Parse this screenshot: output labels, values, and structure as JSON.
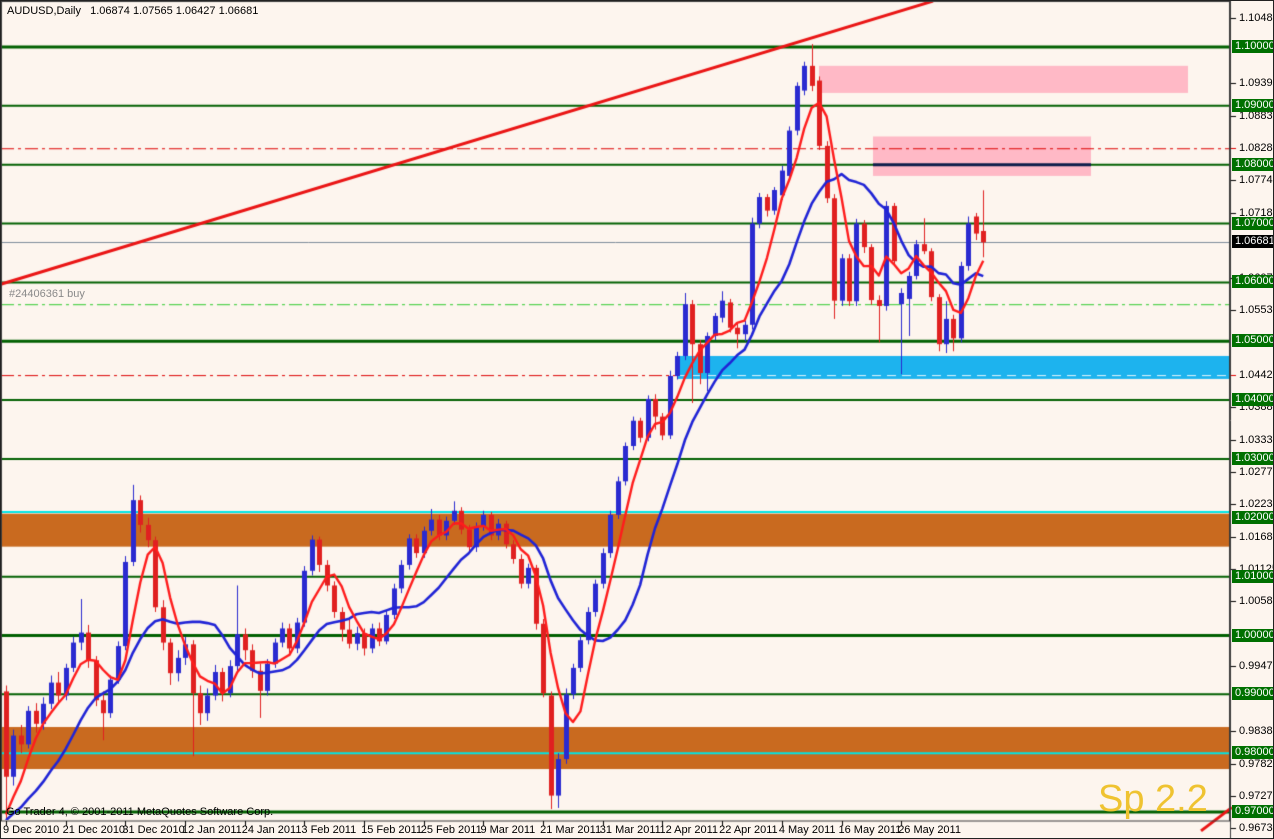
{
  "window": {
    "title_line": "AUDUSD,Daily   1.06874 1.07565 1.06427 1.06681",
    "copyright": "Go Trader 4, © 2001-2011 MetaQuotes Software Corp.",
    "watermark": "Sp 2.2",
    "order_label": "#24406361 buy"
  },
  "colors": {
    "background": "#fdf5ee",
    "candle_up": "#2a2ad0",
    "candle_down": "#e02020",
    "ma_fast": "#ff1c1c",
    "ma_slow": "#2024d6",
    "trendline": "#ea1515",
    "green_level": "#006000",
    "cyan_level": "#00e6e6",
    "orange_band": "#c96a1f",
    "pink_zone": "#ffb9c6",
    "blue_zone": "#1db3ee",
    "navy_segment": "#0c1e4a",
    "red_dash": "#dd0000",
    "order_line": "#2ecc2e",
    "price_line": "#7e8c9a",
    "axis_text": "#000000",
    "label_green_bg": "#007000",
    "label_black_bg": "#000000",
    "watermark_color": "#efc331"
  },
  "chart_data": {
    "type": "candlestick",
    "symbol": "AUDUSD",
    "timeframe": "Daily",
    "last_ohlc": {
      "open": 1.06874,
      "high": 1.07565,
      "low": 1.06427,
      "close": 1.06681
    },
    "axis": {
      "p_top": 1.10765,
      "p_bottom": 0.96865,
      "y1": 1,
      "y2": 819,
      "x_plot_right": 1229,
      "x0": 5,
      "dx": 7.46,
      "label_every": 8
    },
    "x_labels": [
      "9 Dec 2010",
      "21 Dec 2010",
      "31 Dec 2010",
      "12 Jan 2011",
      "24 Jan 2011",
      "3 Feb 2011",
      "15 Feb 2011",
      "25 Feb 2011",
      "9 Mar 2011",
      "21 Mar 2011",
      "31 Mar 2011",
      "12 Apr 2011",
      "22 Apr 2011",
      "4 May 2011",
      "16 May 2011",
      "26 May 2011"
    ],
    "y_ticks": [
      "1.10485",
      "1.09390",
      "1.08835",
      "1.08280",
      "1.07740",
      "1.07185",
      "1.06075",
      "1.05535",
      "1.04425",
      "1.03885",
      "1.03330",
      "1.02775",
      "1.02235",
      "1.01680",
      "1.01125",
      "1.00585",
      "0.99475",
      "0.98380",
      "0.97825",
      "0.97270",
      "0.96730"
    ],
    "y_ticks_red": [
      "1.08280",
      "1.04425"
    ],
    "y_green_labels": [
      "1.10000",
      "1.09000",
      "1.08000",
      "1.07000",
      "1.06000",
      "1.05000",
      "1.04000",
      "1.03000",
      "1.02000",
      "1.01000",
      "1.00000",
      "0.99000",
      "0.98000",
      "0.97000"
    ],
    "current_price_label": "1.06681",
    "current_price": 1.06681,
    "green_levels": [
      [
        1.1,
        3
      ],
      [
        1.09,
        2
      ],
      [
        1.08,
        2
      ],
      [
        1.07,
        2
      ],
      [
        1.06,
        2
      ],
      [
        1.05,
        3
      ],
      [
        1.04,
        2
      ],
      [
        1.03,
        2
      ],
      [
        1.02,
        2
      ],
      [
        1.01,
        2
      ],
      [
        1.0,
        3
      ],
      [
        0.99,
        2
      ],
      [
        0.98,
        2
      ],
      [
        0.97,
        3
      ]
    ],
    "cyan_levels": [
      1.021,
      0.98
    ],
    "orange_bands": [
      [
        1.0207,
        1.0151
      ],
      [
        0.98445,
        0.97731
      ]
    ],
    "blue_zone": {
      "top": 1.0475,
      "bottom": 1.0436,
      "x1": 676,
      "x2": 1229
    },
    "pink_zones": [
      {
        "top": 1.0968,
        "bottom": 1.0922,
        "x1": 818,
        "x2": 1187
      },
      {
        "top": 1.0848,
        "bottom": 1.0781,
        "x1": 872,
        "x2": 1090
      }
    ],
    "navy_segment": {
      "price": 1.08,
      "x1": 872,
      "x2": 1090
    },
    "red_dash_levels": [
      1.0828,
      1.04425
    ],
    "order_line": {
      "price": 1.0563
    },
    "trendlines": [
      {
        "x1": 0,
        "p1": 1.0597,
        "x2": 932,
        "p2": 1.1078
      },
      {
        "x1": 1200,
        "p1": 0.9668,
        "x2": 1231,
        "p2": 0.9708
      }
    ],
    "ma": {
      "fast": 5,
      "slow": 13,
      "seed": 0.968
    },
    "candles": [
      [
        0.9905,
        0.9915,
        0.967,
        0.976
      ],
      [
        0.976,
        0.984,
        0.9745,
        0.983
      ],
      [
        0.983,
        0.9848,
        0.98,
        0.9815
      ],
      [
        0.9815,
        0.988,
        0.9808,
        0.9872
      ],
      [
        0.9872,
        0.9885,
        0.9835,
        0.985
      ],
      [
        0.985,
        0.9895,
        0.984,
        0.9884
      ],
      [
        0.9884,
        0.9932,
        0.9875,
        0.992
      ],
      [
        0.992,
        0.9938,
        0.9885,
        0.9898
      ],
      [
        0.9898,
        0.9952,
        0.989,
        0.9945
      ],
      [
        0.9945,
        0.9998,
        0.9938,
        0.9988
      ],
      [
        0.9988,
        1.0062,
        0.9975,
        1.0005
      ],
      [
        1.0005,
        1.0018,
        0.9945,
        0.9958
      ],
      [
        0.9958,
        0.9965,
        0.988,
        0.989
      ],
      [
        0.989,
        0.9905,
        0.9822,
        0.9868
      ],
      [
        0.9868,
        0.9932,
        0.986,
        0.9925
      ],
      [
        0.9925,
        0.999,
        0.9918,
        0.9982
      ],
      [
        0.9982,
        1.0135,
        0.9975,
        1.0125
      ],
      [
        1.0125,
        1.0256,
        1.0118,
        1.023
      ],
      [
        1.023,
        1.0238,
        1.0175,
        1.0188
      ],
      [
        1.0188,
        1.02,
        1.015,
        1.0162
      ],
      [
        1.0162,
        1.0168,
        1.004,
        1.0048
      ],
      [
        1.0048,
        1.006,
        0.9975,
        0.9988
      ],
      [
        0.9988,
        0.9995,
        0.9916,
        0.9936
      ],
      [
        0.9936,
        0.9975,
        0.9922,
        0.9962
      ],
      [
        0.9962,
        0.9998,
        0.995,
        0.9985
      ],
      [
        0.9985,
        0.9992,
        0.9795,
        0.9902
      ],
      [
        0.9902,
        0.9915,
        0.9848,
        0.9868
      ],
      [
        0.9868,
        0.991,
        0.9855,
        0.9898
      ],
      [
        0.9898,
        0.995,
        0.989,
        0.9938
      ],
      [
        0.9938,
        0.9945,
        0.9888,
        0.9902
      ],
      [
        0.9902,
        0.9958,
        0.9895,
        0.9948
      ],
      [
        0.9948,
        1.0085,
        0.994,
        1.0002
      ],
      [
        1.0002,
        1.0012,
        0.9958,
        0.9975
      ],
      [
        0.9975,
        0.9985,
        0.9928,
        0.994
      ],
      [
        0.994,
        0.9952,
        0.986,
        0.9906
      ],
      [
        0.9906,
        0.996,
        0.9898,
        0.9952
      ],
      [
        0.9952,
        0.9995,
        0.9945,
        0.9988
      ],
      [
        0.9988,
        1.0022,
        0.998,
        1.0012
      ],
      [
        1.0012,
        1.002,
        0.9965,
        0.9978
      ],
      [
        0.9978,
        1.003,
        0.997,
        1.0022
      ],
      [
        1.0022,
        1.0118,
        1.0015,
        1.011
      ],
      [
        1.011,
        1.017,
        1.0102,
        1.0163
      ],
      [
        1.0163,
        1.0168,
        1.0108,
        1.012
      ],
      [
        1.012,
        1.0128,
        1.0075,
        1.0085
      ],
      [
        1.0085,
        1.0092,
        1.003,
        1.004
      ],
      [
        1.004,
        1.0048,
        0.999,
        1.001
      ],
      [
        1.001,
        1.0028,
        0.9978,
        0.9986
      ],
      [
        0.9986,
        1.0015,
        0.9975,
        1.0004
      ],
      [
        1.0004,
        1.0012,
        0.9966,
        0.9978
      ],
      [
        0.9978,
        1.002,
        0.997,
        1.0012
      ],
      [
        1.0012,
        1.0022,
        0.9982,
        0.999
      ],
      [
        0.999,
        1.0042,
        0.9985,
        1.0035
      ],
      [
        1.0035,
        1.0088,
        1.0028,
        1.008
      ],
      [
        1.008,
        1.0128,
        1.0072,
        1.012
      ],
      [
        1.012,
        1.0172,
        1.0112,
        1.0165
      ],
      [
        1.0165,
        1.0172,
        1.0132,
        1.014
      ],
      [
        1.014,
        1.0185,
        1.0132,
        1.0178
      ],
      [
        1.0178,
        1.0215,
        1.017,
        1.0197
      ],
      [
        1.0197,
        1.0205,
        1.0162,
        1.017
      ],
      [
        1.017,
        1.0202,
        1.0162,
        1.0195
      ],
      [
        1.0195,
        1.0228,
        1.0188,
        1.0212
      ],
      [
        1.0212,
        1.0218,
        1.0172,
        1.018
      ],
      [
        1.018,
        1.0188,
        1.0142,
        1.015
      ],
      [
        1.015,
        1.0192,
        1.0142,
        1.0185
      ],
      [
        1.0185,
        1.0212,
        1.0178,
        1.0205
      ],
      [
        1.0205,
        1.021,
        1.0162,
        1.017
      ],
      [
        1.017,
        1.0198,
        1.0162,
        1.019
      ],
      [
        1.019,
        1.0195,
        1.0148,
        1.0155
      ],
      [
        1.0155,
        1.0162,
        1.0122,
        1.013
      ],
      [
        1.013,
        1.0138,
        1.008,
        1.0088
      ],
      [
        1.0088,
        1.0122,
        1.008,
        1.0115
      ],
      [
        1.0115,
        1.012,
        1.001,
        1.002
      ],
      [
        1.002,
        1.0028,
        0.9895,
        0.9902
      ],
      [
        0.9898,
        0.9905,
        0.9705,
        0.9728
      ],
      [
        0.9728,
        0.98,
        0.9707,
        0.979
      ],
      [
        0.979,
        0.991,
        0.9782,
        0.99
      ],
      [
        0.99,
        0.9952,
        0.9892,
        0.9945
      ],
      [
        0.9945,
        1.0,
        0.9938,
        0.9992
      ],
      [
        0.9992,
        1.0048,
        0.9985,
        1.004
      ],
      [
        1.004,
        1.0095,
        1.0032,
        1.0088
      ],
      [
        1.0088,
        1.0148,
        1.008,
        1.014
      ],
      [
        1.014,
        1.0212,
        1.0132,
        1.0205
      ],
      [
        1.0205,
        1.027,
        1.0198,
        1.0262
      ],
      [
        1.0262,
        1.0328,
        1.0255,
        1.0322
      ],
      [
        1.0322,
        1.0372,
        1.0315,
        1.0365
      ],
      [
        1.0365,
        1.037,
        1.0328,
        1.0336
      ],
      [
        1.0336,
        1.0408,
        1.033,
        1.0402
      ],
      [
        1.0402,
        1.041,
        1.035,
        1.0372
      ],
      [
        1.0372,
        1.0378,
        1.0332,
        1.034
      ],
      [
        1.034,
        1.045,
        1.0334,
        1.0441
      ],
      [
        1.0441,
        1.0482,
        1.0435,
        1.0475
      ],
      [
        1.0475,
        1.0582,
        1.0468,
        1.0563
      ],
      [
        1.0563,
        1.057,
        1.0395,
        1.0495
      ],
      [
        1.0495,
        1.0502,
        1.0427,
        1.0446
      ],
      [
        1.0446,
        1.0515,
        1.0415,
        1.0509
      ],
      [
        1.0509,
        1.0548,
        1.0502,
        1.0543
      ],
      [
        1.054,
        1.0585,
        1.0532,
        1.0569
      ],
      [
        1.0566,
        1.0572,
        1.0515,
        1.0523
      ],
      [
        1.0523,
        1.053,
        1.0488,
        1.0512
      ],
      [
        1.0512,
        1.0535,
        1.05,
        1.0528
      ],
      [
        1.0528,
        1.071,
        1.052,
        1.07
      ],
      [
        1.07,
        1.0752,
        1.0692,
        1.0745
      ],
      [
        1.0745,
        1.075,
        1.0712,
        1.0722
      ],
      [
        1.0722,
        1.0762,
        1.0715,
        1.0757
      ],
      [
        1.0748,
        1.0798,
        1.074,
        1.079
      ],
      [
        1.0781,
        1.0865,
        1.0775,
        1.0858
      ],
      [
        1.0858,
        1.094,
        1.085,
        1.0934
      ],
      [
        1.0926,
        1.0975,
        1.0918,
        1.0968
      ],
      [
        1.0968,
        1.1005,
        1.0925,
        1.0934
      ],
      [
        1.0943,
        1.095,
        1.0825,
        1.0832
      ],
      [
        1.0832,
        1.084,
        1.0735,
        1.0743
      ],
      [
        1.0743,
        1.075,
        1.0538,
        1.0569
      ],
      [
        1.0569,
        1.0648,
        1.056,
        1.0641
      ],
      [
        1.0641,
        1.0648,
        1.056,
        1.0568
      ],
      [
        1.0568,
        1.0708,
        1.056,
        1.07
      ],
      [
        1.07,
        1.0706,
        1.065,
        1.066
      ],
      [
        1.066,
        1.0665,
        1.0562,
        1.057
      ],
      [
        1.057,
        1.0578,
        1.0498,
        1.056
      ],
      [
        1.056,
        1.0738,
        1.0552,
        1.073
      ],
      [
        1.073,
        1.0735,
        1.0628,
        1.0636
      ],
      [
        1.0563,
        1.059,
        1.0444,
        1.0582
      ],
      [
        1.0572,
        1.0618,
        1.0509,
        1.0611
      ],
      [
        1.0611,
        1.0672,
        1.0605,
        1.0665
      ],
      [
        1.0665,
        1.0709,
        1.0648,
        1.0653
      ],
      [
        1.0653,
        1.0658,
        1.0568,
        1.0575
      ],
      [
        1.0575,
        1.058,
        1.0483,
        1.0495
      ],
      [
        1.0495,
        1.0568,
        1.048,
        1.0538
      ],
      [
        1.0538,
        1.0545,
        1.0483,
        1.0505
      ],
      [
        1.0505,
        1.0635,
        1.0498,
        1.0628
      ],
      [
        1.0628,
        1.0712,
        1.062,
        1.07
      ],
      [
        1.0712,
        1.0718,
        1.0672,
        1.0683
      ],
      [
        1.06874,
        1.07565,
        1.06427,
        1.06681
      ]
    ]
  }
}
